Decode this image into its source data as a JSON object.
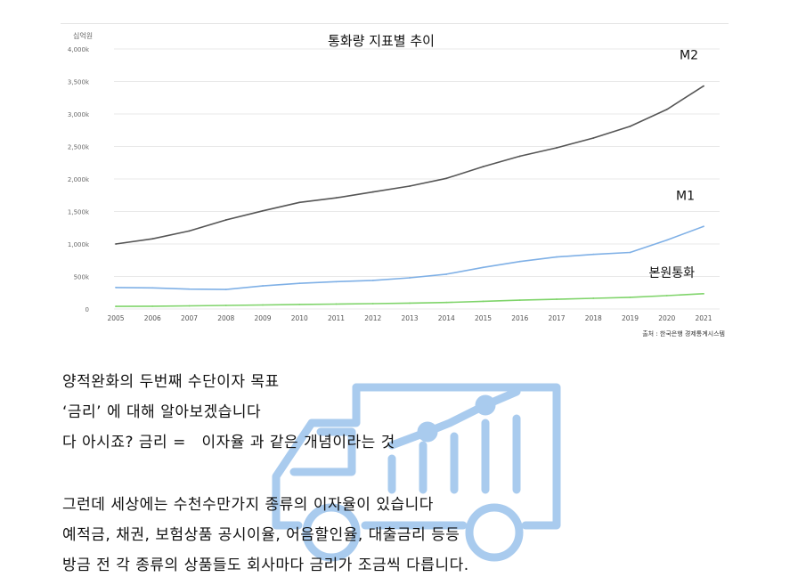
{
  "colors": {
    "m2": "#555555",
    "m1": "#7fb0e6",
    "base": "#7fd46a",
    "grid": "#e8e8e8",
    "watermark": "#a9cbee",
    "text": "#111111"
  },
  "chart_data": {
    "type": "line",
    "title": "통화량 지표별 추이",
    "unit_label": "십억원",
    "source": "출처 : 한국은행 경제통계시스템",
    "x": [
      "2005",
      "2006",
      "2007",
      "2008",
      "2009",
      "2010",
      "2011",
      "2012",
      "2013",
      "2014",
      "2015",
      "2016",
      "2017",
      "2018",
      "2019",
      "2020",
      "2021"
    ],
    "ylim": [
      0,
      4000
    ],
    "yticks": [
      0,
      500,
      1000,
      1500,
      2000,
      2500,
      3000,
      3500,
      4000
    ],
    "ytick_labels": [
      "0",
      "500k",
      "1,000k",
      "1,500k",
      "2,000k",
      "2,500k",
      "3,000k",
      "3,500k",
      "4,000k"
    ],
    "grid": true,
    "series": [
      {
        "name": "M2",
        "color_key": "m2",
        "values": [
          1000,
          1080,
          1200,
          1370,
          1510,
          1640,
          1710,
          1800,
          1890,
          2010,
          2190,
          2350,
          2480,
          2630,
          2810,
          3070,
          3430
        ]
      },
      {
        "name": "M1",
        "color_key": "m1",
        "values": [
          330,
          325,
          305,
          300,
          355,
          395,
          420,
          440,
          480,
          535,
          640,
          730,
          800,
          840,
          870,
          1060,
          1270
        ]
      },
      {
        "name": "본원통화",
        "color_key": "base",
        "values": [
          40,
          43,
          48,
          55,
          62,
          70,
          76,
          82,
          90,
          100,
          118,
          135,
          150,
          165,
          180,
          205,
          235
        ]
      }
    ]
  },
  "paragraph1": [
    "양적완화의 두번째 수단이자 목표",
    "‘금리’ 에 대해 알아보겠습니다",
    "다 아시죠? 금리 =   이자율 과 같은 개념이라는 것"
  ],
  "paragraph2": [
    "그런데 세상에는 수천수만가지 종류의 이자율이 있습니다",
    "예적금, 채권, 보험상품 공시이율, 어음할인율, 대출금리 등등",
    "방금 전 각 종류의 상품들도 회사마다 금리가 조금씩 다릅니다."
  ]
}
